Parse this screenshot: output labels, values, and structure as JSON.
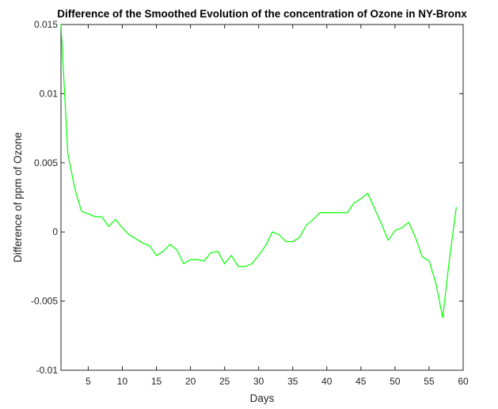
{
  "chart_data": {
    "type": "line",
    "title": "Difference of the Smoothed Evolution of the concentration of Ozone in NY-Bronx",
    "xlabel": "Days",
    "ylabel": "Difference of ppm of Ozone",
    "xlim": [
      1,
      60
    ],
    "ylim": [
      -0.01,
      0.015
    ],
    "xticks": [
      5,
      10,
      15,
      20,
      25,
      30,
      35,
      40,
      45,
      50,
      55,
      60
    ],
    "yticks": [
      -0.01,
      -0.005,
      0,
      0.005,
      0.01,
      0.015
    ],
    "xtick_labels": [
      "5",
      "10",
      "15",
      "20",
      "25",
      "30",
      "35",
      "40",
      "45",
      "50",
      "55",
      "60"
    ],
    "ytick_labels": [
      "-0.01",
      "-0.005",
      "0",
      "0.005",
      "0.01",
      "0.015"
    ],
    "grid": false,
    "line_color": "#00ff00",
    "series": [
      {
        "x": [
          1,
          2,
          3,
          4,
          5,
          6,
          7,
          8,
          9,
          10,
          11,
          12,
          13,
          14,
          15,
          16,
          17,
          18,
          19,
          20,
          21,
          22,
          23,
          24,
          25,
          26,
          27,
          28,
          29,
          30,
          31,
          32,
          33,
          34,
          35,
          36,
          37,
          38,
          39,
          40,
          41,
          42,
          43,
          44,
          45,
          46,
          47,
          48,
          49,
          50,
          51,
          52,
          53,
          54,
          55,
          56,
          57,
          58,
          59
        ],
        "values": [
          0.015,
          0.0057,
          0.0032,
          0.0015,
          0.0013,
          0.0011,
          0.0011,
          0.0004,
          0.0009,
          0.0003,
          -0.0002,
          -0.0005,
          -0.0008,
          -0.001,
          -0.0017,
          -0.0014,
          -0.0009,
          -0.0013,
          -0.0023,
          -0.002,
          -0.002,
          -0.0021,
          -0.0015,
          -0.0014,
          -0.0023,
          -0.0017,
          -0.0025,
          -0.0025,
          -0.0023,
          -0.0017,
          -0.001,
          0.0,
          -0.0002,
          -0.0007,
          -0.0007,
          -0.0004,
          0.0005,
          0.0009,
          0.0014,
          0.0014,
          0.0014,
          0.0014,
          0.0014,
          0.0021,
          0.0024,
          0.0028,
          0.0017,
          0.0006,
          -0.0006,
          0.0001,
          0.0003,
          0.0007,
          -0.0004,
          -0.0018,
          -0.0021,
          -0.0037,
          -0.0062,
          -0.0019,
          0.0018
        ]
      }
    ]
  }
}
